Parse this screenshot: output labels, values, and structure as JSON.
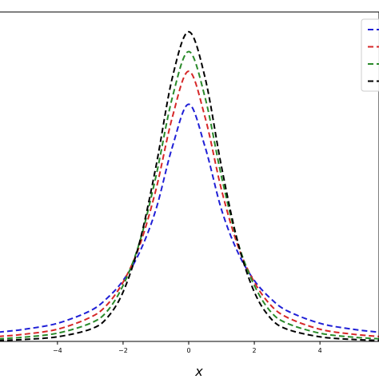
{
  "chart_data": {
    "type": "line",
    "title": "",
    "xlabel": "x",
    "ylabel": "",
    "xlim": [
      -5.8,
      5.8
    ],
    "ylim": [
      0.0,
      1.0
    ],
    "x_ticks": [
      -4,
      -2,
      0,
      2,
      4
    ],
    "x_tick_labels": [
      "−4",
      "−2",
      "0",
      "2",
      "4"
    ],
    "grid": false,
    "legend": {
      "position": "top-right",
      "visible_entries": 4,
      "labels_visible": false
    },
    "series": [
      {
        "color": "#1f1fd6",
        "dash": "dashed",
        "x": [
          -5.8,
          -5,
          -4,
          -3,
          -2.5,
          -2,
          -1.5,
          -1,
          -0.5,
          0,
          0.5,
          1,
          1.5,
          2,
          2.5,
          3,
          4,
          5,
          5.8
        ],
        "y": [
          0.028,
          0.037,
          0.055,
          0.093,
          0.13,
          0.185,
          0.27,
          0.4,
          0.59,
          0.72,
          0.59,
          0.4,
          0.27,
          0.185,
          0.13,
          0.093,
          0.055,
          0.037,
          0.028
        ]
      },
      {
        "color": "#d62728",
        "dash": "dashed",
        "x": [
          -5.8,
          -5,
          -4,
          -3,
          -2.5,
          -2,
          -1.5,
          -1,
          -0.5,
          0,
          0.5,
          1,
          1.5,
          2,
          2.5,
          3,
          4,
          5,
          5.8
        ],
        "y": [
          0.015,
          0.022,
          0.037,
          0.073,
          0.11,
          0.18,
          0.29,
          0.46,
          0.68,
          0.82,
          0.68,
          0.46,
          0.29,
          0.18,
          0.11,
          0.073,
          0.037,
          0.022,
          0.015
        ]
      },
      {
        "color": "#2a8a2a",
        "dash": "dashed",
        "x": [
          -5.8,
          -5,
          -4,
          -3,
          -2.5,
          -2,
          -1.5,
          -1,
          -0.5,
          0,
          0.5,
          1,
          1.5,
          2,
          2.5,
          3,
          4,
          5,
          5.8
        ],
        "y": [
          0.008,
          0.013,
          0.025,
          0.055,
          0.09,
          0.17,
          0.3,
          0.5,
          0.74,
          0.88,
          0.74,
          0.5,
          0.3,
          0.17,
          0.09,
          0.055,
          0.025,
          0.013,
          0.008
        ]
      },
      {
        "color": "#000000",
        "dash": "dashed",
        "x": [
          -5.8,
          -5,
          -4,
          -3,
          -2.5,
          -2,
          -1.5,
          -1,
          -0.5,
          0,
          0.5,
          1,
          1.5,
          2,
          2.5,
          3,
          4,
          5,
          5.8
        ],
        "y": [
          0.003,
          0.006,
          0.014,
          0.037,
          0.07,
          0.15,
          0.3,
          0.53,
          0.8,
          0.94,
          0.8,
          0.53,
          0.3,
          0.15,
          0.07,
          0.037,
          0.014,
          0.006,
          0.003
        ]
      }
    ]
  }
}
